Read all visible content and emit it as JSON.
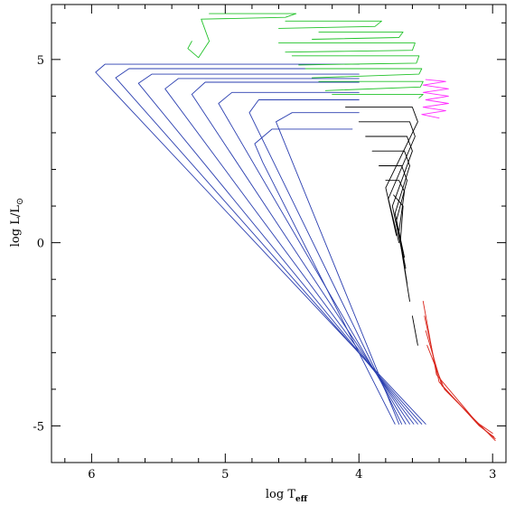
{
  "chart_data": {
    "type": "line",
    "title": "",
    "xlabel": {
      "main": "log  T",
      "sub": "eff"
    },
    "ylabel": {
      "main": "log  L/L",
      "sub": "⊙"
    },
    "xlim": [
      6.3,
      2.9
    ],
    "ylim": [
      -6,
      6.5
    ],
    "xticks_major": [
      {
        "value": 6,
        "label": "6"
      },
      {
        "value": 5,
        "label": "5"
      },
      {
        "value": 4,
        "label": "4"
      },
      {
        "value": 3,
        "label": "3"
      }
    ],
    "yticks_major": [
      {
        "value": 5,
        "label": "5"
      },
      {
        "value": 0,
        "label": "0"
      },
      {
        "value": -5,
        "label": "-5"
      }
    ],
    "colors": {
      "white_dwarf": "#2b3fb0",
      "massive": "#22c22a",
      "intermediate": "#000000",
      "agb": "#ff2bff",
      "low_mass": "#d9261c"
    },
    "series": [
      {
        "group": "white_dwarf",
        "color": "#2b3fb0",
        "points": [
          [
            4.0,
            4.87
          ],
          [
            5.9,
            4.87
          ],
          [
            5.97,
            4.65
          ],
          [
            3.5,
            -4.95
          ]
        ]
      },
      {
        "group": "white_dwarf",
        "color": "#2b3fb0",
        "points": [
          [
            4.0,
            4.75
          ],
          [
            5.72,
            4.75
          ],
          [
            5.82,
            4.5
          ],
          [
            3.53,
            -4.95
          ]
        ]
      },
      {
        "group": "white_dwarf",
        "color": "#2b3fb0",
        "points": [
          [
            4.0,
            4.6
          ],
          [
            5.55,
            4.6
          ],
          [
            5.65,
            4.35
          ],
          [
            3.56,
            -4.95
          ]
        ]
      },
      {
        "group": "white_dwarf",
        "color": "#2b3fb0",
        "points": [
          [
            4.0,
            4.48
          ],
          [
            5.35,
            4.48
          ],
          [
            5.45,
            4.2
          ],
          [
            3.59,
            -4.95
          ]
        ]
      },
      {
        "group": "white_dwarf",
        "color": "#2b3fb0",
        "points": [
          [
            4.0,
            4.38
          ],
          [
            5.15,
            4.38
          ],
          [
            5.25,
            4.05
          ],
          [
            3.62,
            -4.95
          ]
        ]
      },
      {
        "group": "white_dwarf",
        "color": "#2b3fb0",
        "points": [
          [
            4.0,
            4.1
          ],
          [
            4.95,
            4.1
          ],
          [
            5.05,
            3.8
          ],
          [
            3.65,
            -4.95
          ]
        ]
      },
      {
        "group": "white_dwarf",
        "color": "#2b3fb0",
        "points": [
          [
            4.0,
            3.9
          ],
          [
            4.75,
            3.9
          ],
          [
            4.82,
            3.55
          ],
          [
            3.68,
            -4.95
          ]
        ]
      },
      {
        "group": "white_dwarf",
        "color": "#2b3fb0",
        "points": [
          [
            4.0,
            3.55
          ],
          [
            4.5,
            3.55
          ],
          [
            4.62,
            3.3
          ],
          [
            3.7,
            -4.95
          ]
        ]
      },
      {
        "group": "white_dwarf",
        "color": "#2b3fb0",
        "points": [
          [
            4.05,
            3.1
          ],
          [
            4.65,
            3.1
          ],
          [
            4.78,
            2.7
          ],
          [
            4.72,
            2.2
          ],
          [
            3.73,
            -4.95
          ]
        ]
      },
      {
        "group": "massive",
        "color": "#22c22a",
        "points": [
          [
            5.12,
            6.25
          ],
          [
            4.47,
            6.25
          ],
          [
            4.55,
            6.15
          ],
          [
            5.18,
            6.1
          ],
          [
            5.12,
            5.5
          ],
          [
            5.2,
            5.05
          ],
          [
            5.28,
            5.3
          ],
          [
            5.25,
            5.5
          ]
        ]
      },
      {
        "group": "massive",
        "color": "#22c22a",
        "points": [
          [
            4.55,
            6.05
          ],
          [
            3.83,
            6.05
          ],
          [
            3.88,
            5.9
          ],
          [
            4.6,
            5.85
          ]
        ]
      },
      {
        "group": "massive",
        "color": "#22c22a",
        "points": [
          [
            4.3,
            5.75
          ],
          [
            3.67,
            5.75
          ],
          [
            3.7,
            5.6
          ],
          [
            4.35,
            5.55
          ]
        ]
      },
      {
        "group": "massive",
        "color": "#22c22a",
        "points": [
          [
            4.6,
            5.45
          ],
          [
            3.58,
            5.45
          ],
          [
            3.6,
            5.25
          ],
          [
            4.55,
            5.2
          ]
        ]
      },
      {
        "group": "massive",
        "color": "#22c22a",
        "points": [
          [
            4.5,
            5.1
          ],
          [
            3.55,
            5.1
          ],
          [
            3.57,
            4.9
          ],
          [
            4.45,
            4.85
          ]
        ]
      },
      {
        "group": "massive",
        "color": "#22c22a",
        "points": [
          [
            4.4,
            4.75
          ],
          [
            3.53,
            4.75
          ],
          [
            3.55,
            4.6
          ],
          [
            4.35,
            4.5
          ]
        ]
      },
      {
        "group": "massive",
        "color": "#22c22a",
        "points": [
          [
            4.3,
            4.4
          ],
          [
            3.52,
            4.4
          ],
          [
            3.54,
            4.25
          ],
          [
            4.25,
            4.15
          ]
        ]
      },
      {
        "group": "massive",
        "color": "#22c22a",
        "points": [
          [
            4.2,
            4.05
          ],
          [
            3.52,
            4.05
          ],
          [
            3.55,
            3.95
          ]
        ]
      },
      {
        "group": "agb",
        "color": "#ff2bff",
        "points": [
          [
            3.5,
            4.45
          ],
          [
            3.35,
            4.4
          ],
          [
            3.52,
            4.3
          ],
          [
            3.33,
            4.2
          ],
          [
            3.52,
            4.1
          ],
          [
            3.33,
            4.0
          ],
          [
            3.5,
            3.9
          ],
          [
            3.33,
            3.8
          ],
          [
            3.52,
            3.7
          ],
          [
            3.35,
            3.6
          ],
          [
            3.53,
            3.5
          ],
          [
            3.4,
            3.4
          ]
        ]
      },
      {
        "group": "intermediate",
        "color": "#000000",
        "points": [
          [
            4.1,
            3.7
          ],
          [
            3.6,
            3.7
          ],
          [
            3.56,
            3.3
          ],
          [
            3.8,
            1.5
          ],
          [
            3.72,
            0.2
          ]
        ]
      },
      {
        "group": "intermediate",
        "color": "#000000",
        "points": [
          [
            4.0,
            3.3
          ],
          [
            3.62,
            3.3
          ],
          [
            3.58,
            2.9
          ],
          [
            3.78,
            1.2
          ],
          [
            3.7,
            0.0
          ]
        ]
      },
      {
        "group": "intermediate",
        "color": "#000000",
        "points": [
          [
            3.95,
            2.9
          ],
          [
            3.64,
            2.9
          ],
          [
            3.6,
            2.5
          ],
          [
            3.75,
            1.0
          ],
          [
            3.68,
            -0.2
          ]
        ]
      },
      {
        "group": "intermediate",
        "color": "#000000",
        "points": [
          [
            3.9,
            2.5
          ],
          [
            3.66,
            2.5
          ],
          [
            3.62,
            2.1
          ],
          [
            3.73,
            0.8
          ],
          [
            3.66,
            -0.4
          ]
        ]
      },
      {
        "group": "intermediate",
        "color": "#000000",
        "points": [
          [
            3.85,
            2.1
          ],
          [
            3.68,
            2.1
          ],
          [
            3.64,
            1.7
          ],
          [
            3.72,
            0.6
          ],
          [
            3.65,
            -0.7
          ]
        ]
      },
      {
        "group": "intermediate",
        "color": "#000000",
        "points": [
          [
            3.8,
            1.7
          ],
          [
            3.7,
            1.7
          ],
          [
            3.66,
            1.4
          ],
          [
            3.7,
            0.3
          ],
          [
            3.64,
            -1.1
          ]
        ]
      },
      {
        "group": "intermediate",
        "color": "#000000",
        "points": [
          [
            3.74,
            1.3
          ],
          [
            3.67,
            1.0
          ],
          [
            3.69,
            0.0
          ],
          [
            3.62,
            -1.6
          ]
        ]
      },
      {
        "group": "intermediate",
        "color": "#000000",
        "points": [
          [
            3.6,
            -2.0
          ],
          [
            3.58,
            -2.4
          ],
          [
            3.56,
            -2.8
          ]
        ]
      },
      {
        "group": "low_mass",
        "color": "#d9261c",
        "points": [
          [
            3.52,
            -1.6
          ],
          [
            3.42,
            -3.6
          ],
          [
            3.12,
            -4.9
          ],
          [
            3.0,
            -5.2
          ]
        ]
      },
      {
        "group": "low_mass",
        "color": "#d9261c",
        "points": [
          [
            3.51,
            -2.0
          ],
          [
            3.4,
            -3.8
          ],
          [
            3.1,
            -5.0
          ],
          [
            2.99,
            -5.3
          ]
        ]
      },
      {
        "group": "low_mass",
        "color": "#d9261c",
        "points": [
          [
            3.5,
            -2.4
          ],
          [
            3.38,
            -3.9
          ],
          [
            3.08,
            -5.05
          ],
          [
            2.98,
            -5.35
          ]
        ]
      },
      {
        "group": "low_mass",
        "color": "#d9261c",
        "points": [
          [
            3.49,
            -2.8
          ],
          [
            3.36,
            -4.0
          ],
          [
            3.06,
            -5.1
          ],
          [
            2.98,
            -5.4
          ]
        ]
      }
    ]
  }
}
